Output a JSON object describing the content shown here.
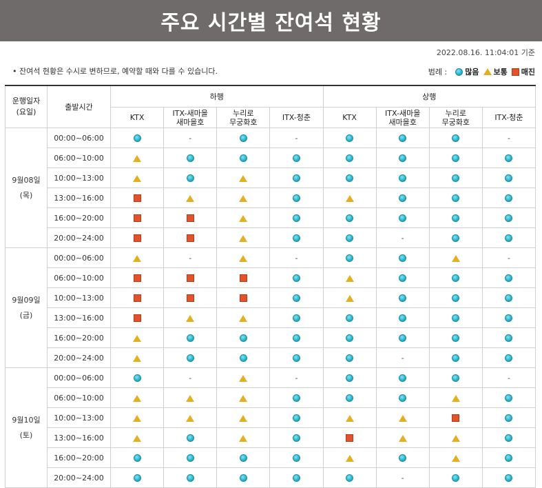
{
  "title": "주요 시간별 잔여석 현황",
  "timestamp": "2022.08.16. 11:04:01 기준",
  "notice": "• 잔여석 현황은 수시로 변하므로, 예약할 때와 다를 수 있습니다.",
  "legend": {
    "label": "범례 :",
    "items": [
      {
        "icon": "circle",
        "label": "많음"
      },
      {
        "icon": "triangle",
        "label": "보통"
      },
      {
        "icon": "square",
        "label": "매진"
      }
    ]
  },
  "table": {
    "col_date": "운행일자\n(요일)",
    "col_time": "출발시간",
    "group_down": "하행",
    "group_up": "상행",
    "trains": [
      "KTX",
      "ITX-새마을\n새마을호",
      "누리로\n무궁화호",
      "ITX-청춘",
      "KTX",
      "ITX-새마을\n새마을호",
      "누리로\n무궁화호",
      "ITX-청춘"
    ],
    "days": [
      {
        "date": "9월08일",
        "weekday": "(목)",
        "rows": [
          {
            "time": "00:00~06:00",
            "status": [
              "circle",
              "dash",
              "circle",
              "dash",
              "circle",
              "circle",
              "circle",
              "dash"
            ]
          },
          {
            "time": "06:00~10:00",
            "status": [
              "triangle",
              "circle",
              "circle",
              "circle",
              "circle",
              "circle",
              "circle",
              "circle"
            ]
          },
          {
            "time": "10:00~13:00",
            "status": [
              "triangle",
              "circle",
              "triangle",
              "circle",
              "circle",
              "circle",
              "circle",
              "circle"
            ]
          },
          {
            "time": "13:00~16:00",
            "status": [
              "square",
              "triangle",
              "triangle",
              "circle",
              "triangle",
              "circle",
              "circle",
              "circle"
            ]
          },
          {
            "time": "16:00~20:00",
            "status": [
              "square",
              "square",
              "triangle",
              "circle",
              "circle",
              "circle",
              "circle",
              "circle"
            ]
          },
          {
            "time": "20:00~24:00",
            "status": [
              "square",
              "square",
              "triangle",
              "circle",
              "circle",
              "dash",
              "circle",
              "circle"
            ]
          }
        ]
      },
      {
        "date": "9월09일",
        "weekday": "(금)",
        "rows": [
          {
            "time": "00:00~06:00",
            "status": [
              "triangle",
              "dash",
              "triangle",
              "dash",
              "circle",
              "circle",
              "triangle",
              "dash"
            ]
          },
          {
            "time": "06:00~10:00",
            "status": [
              "square",
              "square",
              "square",
              "circle",
              "triangle",
              "circle",
              "circle",
              "circle"
            ]
          },
          {
            "time": "10:00~13:00",
            "status": [
              "square",
              "square",
              "square",
              "circle",
              "triangle",
              "circle",
              "circle",
              "circle"
            ]
          },
          {
            "time": "13:00~16:00",
            "status": [
              "square",
              "triangle",
              "triangle",
              "circle",
              "circle",
              "circle",
              "circle",
              "circle"
            ]
          },
          {
            "time": "16:00~20:00",
            "status": [
              "triangle",
              "circle",
              "circle",
              "circle",
              "circle",
              "circle",
              "circle",
              "circle"
            ]
          },
          {
            "time": "20:00~24:00",
            "status": [
              "triangle",
              "circle",
              "circle",
              "circle",
              "circle",
              "dash",
              "circle",
              "circle"
            ]
          }
        ]
      },
      {
        "date": "9월10일",
        "weekday": "(토)",
        "rows": [
          {
            "time": "00:00~06:00",
            "status": [
              "circle",
              "dash",
              "triangle",
              "dash",
              "circle",
              "circle",
              "circle",
              "dash"
            ]
          },
          {
            "time": "06:00~10:00",
            "status": [
              "triangle",
              "triangle",
              "triangle",
              "circle",
              "circle",
              "circle",
              "triangle",
              "circle"
            ]
          },
          {
            "time": "10:00~13:00",
            "status": [
              "triangle",
              "triangle",
              "triangle",
              "circle",
              "triangle",
              "triangle",
              "square",
              "circle"
            ]
          },
          {
            "time": "13:00~16:00",
            "status": [
              "triangle",
              "circle",
              "triangle",
              "circle",
              "square",
              "triangle",
              "triangle",
              "circle"
            ]
          },
          {
            "time": "16:00~20:00",
            "status": [
              "circle",
              "circle",
              "circle",
              "circle",
              "triangle",
              "circle",
              "triangle",
              "circle"
            ]
          },
          {
            "time": "20:00~24:00",
            "status": [
              "circle",
              "circle",
              "circle",
              "circle",
              "circle",
              "dash",
              "circle",
              "circle"
            ]
          }
        ]
      }
    ]
  }
}
